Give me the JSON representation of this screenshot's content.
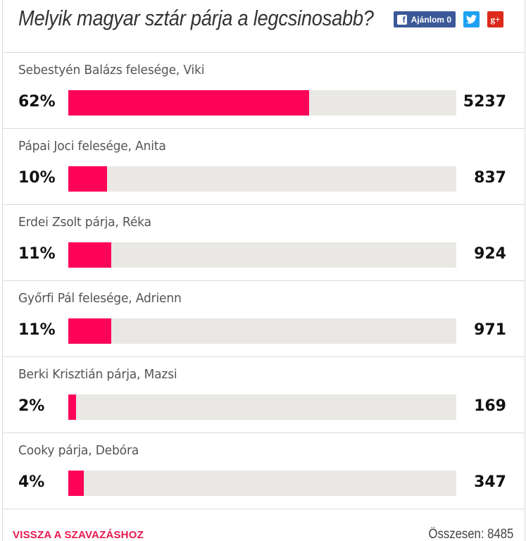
{
  "poll": {
    "title": "Melyik magyar sztár párja a legcsinosabb?",
    "share": {
      "facebook_label": "Ajánlom 0",
      "facebook_icon": "facebook-icon",
      "twitter_icon": "twitter-icon",
      "gplus_label": "g+",
      "colors": {
        "facebook": "#3b5998",
        "twitter": "#1da1f2",
        "gplus": "#dd2a1a"
      }
    },
    "bar_color": "#fe0459",
    "track_color": "#e9e8e5",
    "options": [
      {
        "label": "Sebestyén Balázs felesége, Viki",
        "percent_label": "62%",
        "percent": 62,
        "votes": "5237"
      },
      {
        "label": "Pápai Joci felesége, Anita",
        "percent_label": "10%",
        "percent": 10,
        "votes": "837"
      },
      {
        "label": "Erdei Zsolt párja, Réka",
        "percent_label": "11%",
        "percent": 11,
        "votes": "924"
      },
      {
        "label": "Győrfi Pál felesége, Adrienn",
        "percent_label": "11%",
        "percent": 11,
        "votes": "971"
      },
      {
        "label": "Berki Krisztián párja, Mazsi",
        "percent_label": "2%",
        "percent": 2,
        "votes": "169"
      },
      {
        "label": "Cooky párja, Debóra",
        "percent_label": "4%",
        "percent": 4,
        "votes": "347"
      }
    ],
    "footer": {
      "back_label": "VISSZA A SZAVAZÁSHOZ",
      "total_label": "Összesen: 8485"
    }
  }
}
